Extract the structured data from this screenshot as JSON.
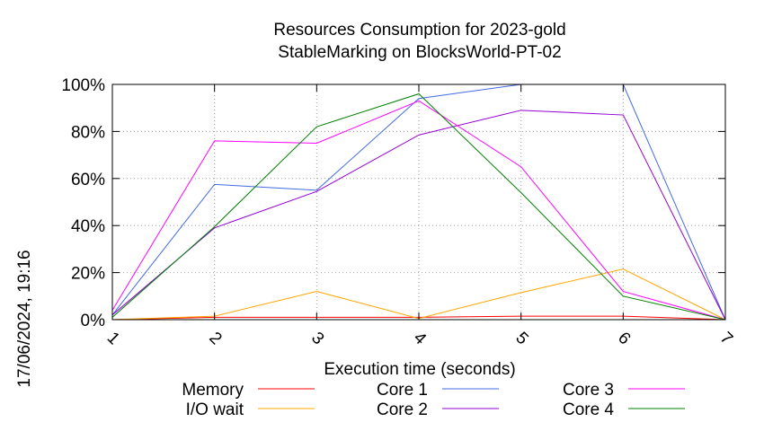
{
  "chart_data": {
    "type": "line",
    "title_lines": [
      "Resources Consumption for 2023-gold",
      "StableMarking on BlocksWorld-PT-02"
    ],
    "xlabel": "Execution time (seconds)",
    "ylabel": "",
    "timestamp": "17/06/2024, 19:16",
    "x": [
      1,
      2,
      3,
      4,
      5,
      6,
      7
    ],
    "x_tick_labels": [
      "1",
      "2",
      "3",
      "4",
      "5",
      "6",
      "7"
    ],
    "xlim": [
      1,
      7
    ],
    "y_ticks": [
      0,
      20,
      40,
      60,
      80,
      100
    ],
    "y_tick_labels": [
      "0%",
      "20%",
      "40%",
      "60%",
      "80%",
      "100%"
    ],
    "ylim": [
      0,
      100
    ],
    "grid": true,
    "legend_position": "bottom",
    "series": [
      {
        "name": "Memory",
        "color": "#ff0000",
        "values": [
          0,
          1,
          1,
          1,
          1.5,
          1.5,
          0
        ]
      },
      {
        "name": "I/O wait",
        "color": "#ffa500",
        "values": [
          0,
          1.5,
          12,
          0.5,
          11.5,
          21.5,
          0
        ]
      },
      {
        "name": "Core 1",
        "color": "#4169e1",
        "values": [
          2,
          57.5,
          55,
          94,
          100,
          100,
          0
        ]
      },
      {
        "name": "Core 2",
        "color": "#9400d3",
        "values": [
          2,
          39,
          54.5,
          78.5,
          89,
          87,
          0
        ]
      },
      {
        "name": "Core 3",
        "color": "#ff00ff",
        "values": [
          4,
          76,
          75,
          93,
          65,
          12,
          0
        ]
      },
      {
        "name": "Core 4",
        "color": "#008000",
        "values": [
          1,
          39.5,
          82,
          96,
          54,
          10,
          0
        ]
      }
    ]
  }
}
